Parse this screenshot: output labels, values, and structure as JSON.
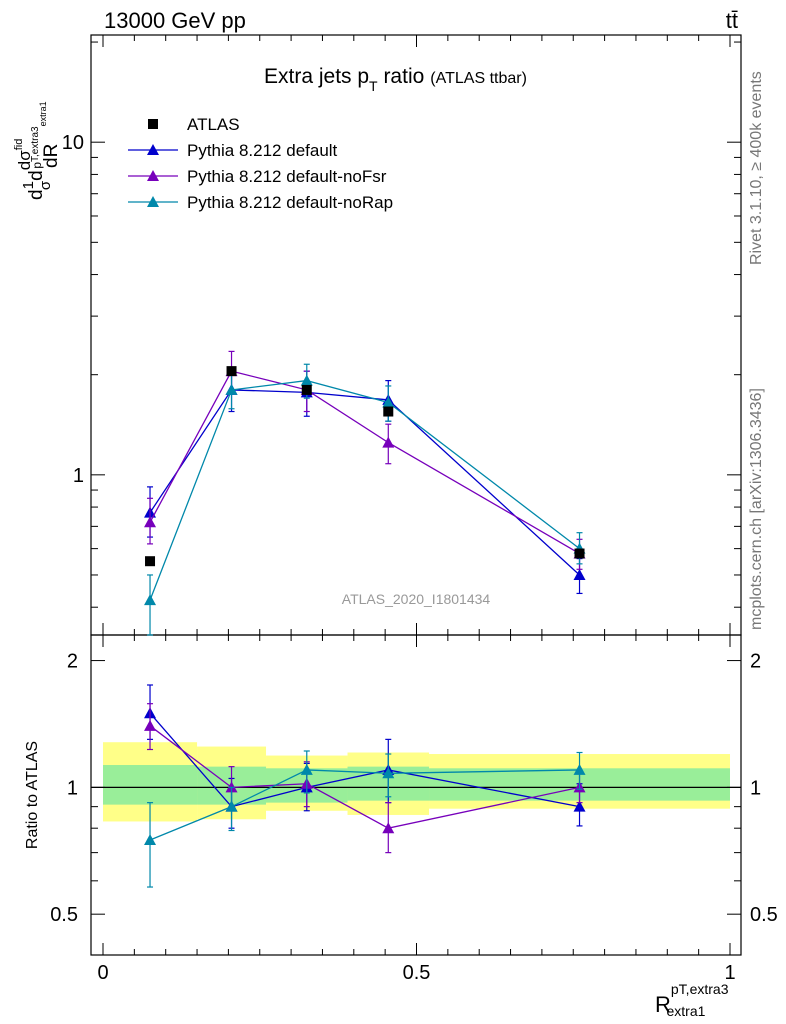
{
  "header": {
    "left": "13000 GeV pp",
    "right": "tt̄"
  },
  "side_labels": {
    "rivet": "Rivet 3.1.10, ≥ 400k events",
    "mcplots": "mcplots.cern.ch [arXiv:1306.3436]"
  },
  "watermark": "ATLAS_2020_I1801434",
  "chart_data": {
    "type": "line",
    "title": "Extra jets p",
    "title_sub": "T",
    "title_tail": " ratio",
    "title_note": "(ATLAS ttbar)",
    "ylabel_main": {
      "a": "1",
      "b": "σ",
      "c": "d",
      "d": "d",
      "e": "dσ",
      "f": "fid",
      "g": "p",
      "h": "T,extra3",
      "i": "extra1",
      "j": "dR"
    },
    "xlabel": {
      "base": "R",
      "sup": "pT,extra3",
      "sub": "extra1"
    },
    "xlim": [
      0,
      1
    ],
    "x_ticks": [
      "0",
      "0.5",
      "1"
    ],
    "x_tick_values": [
      0,
      0.5,
      1
    ],
    "main": {
      "yscale": "log",
      "ylim": [
        0.33,
        21
      ],
      "y_ticks": [
        "1",
        "10"
      ],
      "y_tick_values": [
        1,
        10
      ]
    },
    "ratio": {
      "ylabel": "Ratio to ATLAS",
      "ylim": [
        0.4,
        2.3
      ],
      "y_ticks": [
        "0.5",
        "1",
        "2"
      ],
      "y_tick_values": [
        0.5,
        1,
        2
      ]
    },
    "bins": [
      {
        "lo": 0.0,
        "hi": 0.15
      },
      {
        "lo": 0.15,
        "hi": 0.26
      },
      {
        "lo": 0.26,
        "hi": 0.39
      },
      {
        "lo": 0.39,
        "hi": 0.52
      },
      {
        "lo": 0.52,
        "hi": 1.0
      }
    ],
    "x": [
      0.075,
      0.205,
      0.325,
      0.455,
      0.76
    ],
    "series": [
      {
        "name": "ATLAS",
        "color": "#000000",
        "marker": "square",
        "values": [
          0.55,
          2.05,
          1.8,
          1.55,
          0.58
        ],
        "ratio": [
          1,
          1,
          1,
          1,
          1
        ],
        "ratio_band_inner": [
          [
            0.91,
            1.13
          ],
          [
            0.91,
            1.12
          ],
          [
            0.92,
            1.11
          ],
          [
            0.93,
            1.12
          ],
          [
            0.93,
            1.11
          ]
        ],
        "ratio_band_outer": [
          [
            0.83,
            1.28
          ],
          [
            0.84,
            1.25
          ],
          [
            0.88,
            1.19
          ],
          [
            0.86,
            1.21
          ],
          [
            0.89,
            1.2
          ]
        ]
      },
      {
        "name": "Pythia 8.212 default",
        "color": "#0000cc",
        "marker": "triangle",
        "values": [
          0.77,
          1.8,
          1.77,
          1.68,
          0.5
        ],
        "errors": [
          [
            0.65,
            0.92
          ],
          [
            1.55,
            2.1
          ],
          [
            1.5,
            2.05
          ],
          [
            1.45,
            1.92
          ],
          [
            0.44,
            0.56
          ]
        ],
        "ratio": [
          1.5,
          0.9,
          1.0,
          1.1,
          0.9
        ],
        "ratio_errors": [
          [
            1.3,
            1.75
          ],
          [
            0.8,
            1.05
          ],
          [
            0.88,
            1.14
          ],
          [
            0.92,
            1.3
          ],
          [
            0.81,
            1.02
          ]
        ]
      },
      {
        "name": "Pythia 8.212 default-noFsr",
        "color": "#7700bb",
        "marker": "triangle",
        "values": [
          0.72,
          2.05,
          1.8,
          1.25,
          0.58
        ],
        "errors": [
          [
            0.62,
            0.85
          ],
          [
            1.8,
            2.35
          ],
          [
            1.55,
            2.05
          ],
          [
            1.08,
            1.42
          ],
          [
            0.52,
            0.64
          ]
        ],
        "ratio": [
          1.4,
          1.0,
          1.02,
          0.8,
          1.0
        ],
        "ratio_errors": [
          [
            1.23,
            1.58
          ],
          [
            0.88,
            1.12
          ],
          [
            0.9,
            1.15
          ],
          [
            0.7,
            0.92
          ],
          [
            0.92,
            1.1
          ]
        ]
      },
      {
        "name": "Pythia 8.212 default-noRap",
        "color": "#0088aa",
        "marker": "triangle",
        "values": [
          0.42,
          1.8,
          1.92,
          1.65,
          0.6
        ],
        "errors": [
          [
            0.33,
            0.5
          ],
          [
            1.58,
            2.02
          ],
          [
            1.7,
            2.15
          ],
          [
            1.45,
            1.85
          ],
          [
            0.54,
            0.67
          ]
        ],
        "ratio": [
          0.75,
          0.9,
          1.1,
          1.08,
          1.1
        ],
        "ratio_errors": [
          [
            0.58,
            0.92
          ],
          [
            0.79,
            1.0
          ],
          [
            0.97,
            1.22
          ],
          [
            0.95,
            1.2
          ],
          [
            0.99,
            1.21
          ]
        ]
      }
    ]
  }
}
